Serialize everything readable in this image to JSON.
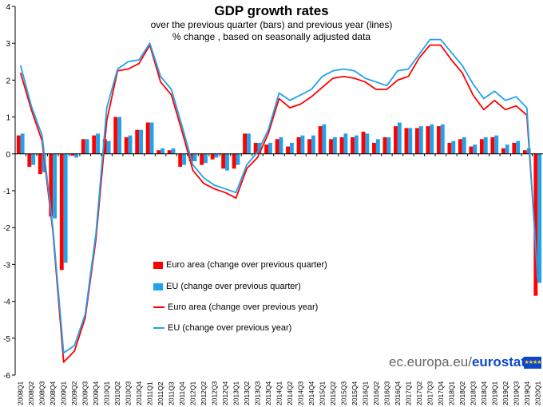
{
  "chart_data": {
    "type": "bar",
    "title": "GDP growth rates",
    "subtitle": [
      "over the previous quarter (bars) and previous year (lines)",
      "% change , based on seasonally adjusted data"
    ],
    "ylim": [
      -6,
      4
    ],
    "yticks": [
      -6,
      -5,
      -4,
      -3,
      -2,
      -1,
      0,
      1,
      2,
      3,
      4
    ],
    "categories": [
      "2008Q1",
      "2008Q2",
      "2008Q3",
      "2008Q4",
      "2009Q1",
      "2009Q2",
      "2009Q3",
      "2009Q4",
      "2010Q1",
      "2010Q2",
      "2010Q3",
      "2010Q4",
      "2011Q1",
      "2011Q2",
      "2011Q3",
      "2011Q4",
      "2012Q1",
      "2012Q2",
      "2012Q3",
      "2012Q4",
      "2013Q1",
      "2013Q2",
      "2013Q3",
      "2013Q4",
      "2014Q1",
      "2014Q2",
      "2014Q3",
      "2014Q4",
      "2015Q1",
      "2015Q2",
      "2015Q3",
      "2015Q4",
      "2016Q1",
      "2016Q2",
      "2016Q3",
      "2016Q4",
      "2017Q1",
      "2017Q2",
      "2017Q3",
      "2017Q4",
      "2018Q1",
      "2018Q2",
      "2018Q3",
      "2018Q4",
      "2019Q1",
      "2019Q2",
      "2019Q3",
      "2019Q4",
      "2020Q1"
    ],
    "series": [
      {
        "name": "Euro area (change over previous quarter)",
        "kind": "bar",
        "color": "#ff0000",
        "values": [
          0.5,
          -0.35,
          -0.55,
          -1.7,
          -3.15,
          -0.05,
          0.4,
          0.5,
          0.4,
          1.0,
          0.45,
          0.65,
          0.85,
          0.1,
          0.1,
          -0.35,
          -0.2,
          -0.3,
          -0.15,
          -0.4,
          -0.4,
          0.55,
          0.3,
          0.25,
          0.4,
          0.2,
          0.45,
          0.4,
          0.75,
          0.4,
          0.45,
          0.45,
          0.6,
          0.3,
          0.45,
          0.75,
          0.7,
          0.7,
          0.75,
          0.75,
          0.3,
          0.4,
          0.2,
          0.4,
          0.45,
          0.15,
          0.3,
          0.1,
          -3.85
        ]
      },
      {
        "name": "EU (change over previous quarter)",
        "kind": "bar",
        "color": "#1fa3ec",
        "values": [
          0.55,
          -0.3,
          -0.5,
          -1.75,
          -2.95,
          -0.1,
          0.4,
          0.55,
          0.35,
          1.0,
          0.5,
          0.65,
          0.85,
          0.15,
          0.15,
          -0.3,
          -0.2,
          -0.25,
          -0.1,
          -0.45,
          -0.3,
          0.55,
          0.3,
          0.3,
          0.45,
          0.3,
          0.5,
          0.5,
          0.8,
          0.45,
          0.55,
          0.5,
          0.55,
          0.4,
          0.45,
          0.85,
          0.7,
          0.75,
          0.8,
          0.8,
          0.35,
          0.45,
          0.25,
          0.45,
          0.5,
          0.25,
          0.35,
          0.15,
          -3.5
        ]
      },
      {
        "name": "Euro area (change over previous year)",
        "kind": "line",
        "color": "#ff0000",
        "values": [
          2.2,
          1.2,
          0.35,
          -2.1,
          -5.65,
          -5.35,
          -4.45,
          -2.3,
          0.9,
          2.25,
          2.3,
          2.45,
          2.95,
          1.95,
          1.6,
          0.6,
          -0.45,
          -0.8,
          -0.95,
          -1.05,
          -1.2,
          -0.4,
          -0.1,
          0.55,
          1.5,
          1.25,
          1.35,
          1.55,
          1.8,
          2.05,
          2.1,
          2.05,
          1.95,
          1.75,
          1.75,
          2.0,
          2.1,
          2.6,
          2.95,
          2.95,
          2.55,
          2.2,
          1.6,
          1.2,
          1.45,
          1.2,
          1.3,
          1.05,
          -3.25
        ]
      },
      {
        "name": "EU (change over previous year)",
        "kind": "line",
        "color": "#1fa3ec",
        "values": [
          2.4,
          1.3,
          0.5,
          -2.0,
          -5.4,
          -5.2,
          -4.35,
          -2.15,
          1.25,
          2.3,
          2.5,
          2.55,
          3.0,
          2.1,
          1.75,
          0.75,
          -0.3,
          -0.65,
          -0.85,
          -0.95,
          -1.05,
          -0.3,
          0.05,
          0.65,
          1.65,
          1.45,
          1.6,
          1.75,
          2.1,
          2.25,
          2.3,
          2.25,
          2.05,
          1.95,
          1.85,
          2.25,
          2.3,
          2.7,
          3.1,
          3.1,
          2.75,
          2.4,
          1.9,
          1.5,
          1.7,
          1.45,
          1.55,
          1.25,
          -3.4
        ]
      }
    ]
  },
  "brand": {
    "text": "ec.europa.eu/",
    "bold": "eurostat",
    "flag_stars": "★★★★"
  }
}
